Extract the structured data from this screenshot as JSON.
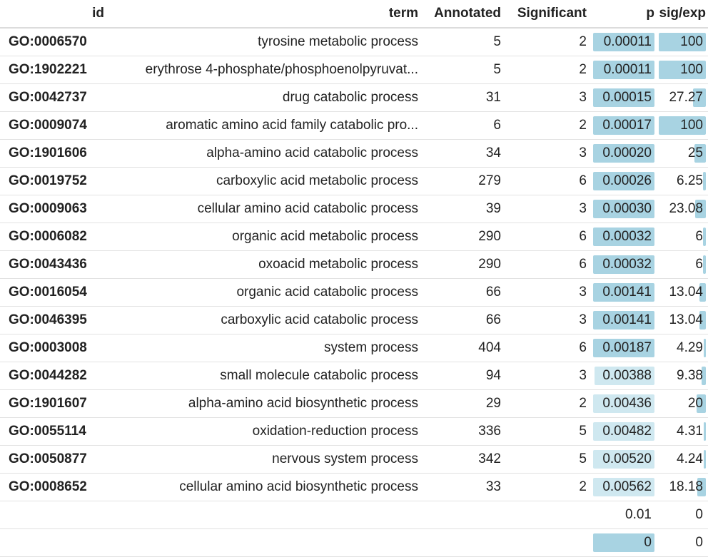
{
  "columns": {
    "id": "id",
    "term": "term",
    "annotated": "Annotated",
    "significant": "Significant",
    "p": "p",
    "sigexp": "sig/exp"
  },
  "colors": {
    "bar_strong": "#a8d3e2",
    "bar_light": "#cfe8f0"
  },
  "rows": [
    {
      "id": "GO:0006570",
      "term": "tyrosine metabolic process",
      "annotated": "5",
      "significant": "2",
      "p": "0.00011",
      "p_fill": 1.0,
      "sigexp": "100",
      "sigexp_fill": 1.0
    },
    {
      "id": "GO:1902221",
      "term": "erythrose 4-phosphate/phosphoenolpyruvat...",
      "annotated": "5",
      "significant": "2",
      "p": "0.00011",
      "p_fill": 1.0,
      "sigexp": "100",
      "sigexp_fill": 1.0
    },
    {
      "id": "GO:0042737",
      "term": "drug catabolic process",
      "annotated": "31",
      "significant": "3",
      "p": "0.00015",
      "p_fill": 1.0,
      "sigexp": "27.27",
      "sigexp_fill": 0.27
    },
    {
      "id": "GO:0009074",
      "term": "aromatic amino acid family catabolic pro...",
      "annotated": "6",
      "significant": "2",
      "p": "0.00017",
      "p_fill": 1.0,
      "sigexp": "100",
      "sigexp_fill": 1.0
    },
    {
      "id": "GO:1901606",
      "term": "alpha-amino acid catabolic process",
      "annotated": "34",
      "significant": "3",
      "p": "0.00020",
      "p_fill": 1.0,
      "sigexp": "25",
      "sigexp_fill": 0.25
    },
    {
      "id": "GO:0019752",
      "term": "carboxylic acid metabolic process",
      "annotated": "279",
      "significant": "6",
      "p": "0.00026",
      "p_fill": 1.0,
      "sigexp": "6.25",
      "sigexp_fill": 0.0625
    },
    {
      "id": "GO:0009063",
      "term": "cellular amino acid catabolic process",
      "annotated": "39",
      "significant": "3",
      "p": "0.00030",
      "p_fill": 1.0,
      "sigexp": "23.08",
      "sigexp_fill": 0.23
    },
    {
      "id": "GO:0006082",
      "term": "organic acid metabolic process",
      "annotated": "290",
      "significant": "6",
      "p": "0.00032",
      "p_fill": 1.0,
      "sigexp": "6",
      "sigexp_fill": 0.06
    },
    {
      "id": "GO:0043436",
      "term": "oxoacid metabolic process",
      "annotated": "290",
      "significant": "6",
      "p": "0.00032",
      "p_fill": 1.0,
      "sigexp": "6",
      "sigexp_fill": 0.06
    },
    {
      "id": "GO:0016054",
      "term": "organic acid catabolic process",
      "annotated": "66",
      "significant": "3",
      "p": "0.00141",
      "p_fill": 1.0,
      "sigexp": "13.04",
      "sigexp_fill": 0.13
    },
    {
      "id": "GO:0046395",
      "term": "carboxylic acid catabolic process",
      "annotated": "66",
      "significant": "3",
      "p": "0.00141",
      "p_fill": 1.0,
      "sigexp": "13.04",
      "sigexp_fill": 0.13
    },
    {
      "id": "GO:0003008",
      "term": "system process",
      "annotated": "404",
      "significant": "6",
      "p": "0.00187",
      "p_fill": 1.0,
      "sigexp": "4.29",
      "sigexp_fill": 0.043
    },
    {
      "id": "GO:0044282",
      "term": "small molecule catabolic process",
      "annotated": "94",
      "significant": "3",
      "p": "0.00388",
      "p_fill": 0.98,
      "sigexp": "9.38",
      "sigexp_fill": 0.094
    },
    {
      "id": "GO:1901607",
      "term": "alpha-amino acid biosynthetic process",
      "annotated": "29",
      "significant": "2",
      "p": "0.00436",
      "p_fill": 1.0,
      "sigexp": "20",
      "sigexp_fill": 0.2
    },
    {
      "id": "GO:0055114",
      "term": "oxidation-reduction process",
      "annotated": "336",
      "significant": "5",
      "p": "0.00482",
      "p_fill": 1.0,
      "sigexp": "4.31",
      "sigexp_fill": 0.043
    },
    {
      "id": "GO:0050877",
      "term": "nervous system process",
      "annotated": "342",
      "significant": "5",
      "p": "0.00520",
      "p_fill": 1.0,
      "sigexp": "4.24",
      "sigexp_fill": 0.042
    },
    {
      "id": "GO:0008652",
      "term": "cellular amino acid biosynthetic process",
      "annotated": "33",
      "significant": "2",
      "p": "0.00562",
      "p_fill": 1.0,
      "sigexp": "18.18",
      "sigexp_fill": 0.18
    },
    {
      "id": "",
      "term": "",
      "annotated": "",
      "significant": "",
      "p": "0.01",
      "p_fill": 0,
      "sigexp": "0",
      "sigexp_fill": 0
    },
    {
      "id": "",
      "term": "",
      "annotated": "",
      "significant": "",
      "p": "0",
      "p_fill": 1.0,
      "sigexp": "0",
      "sigexp_fill": 0
    }
  ]
}
